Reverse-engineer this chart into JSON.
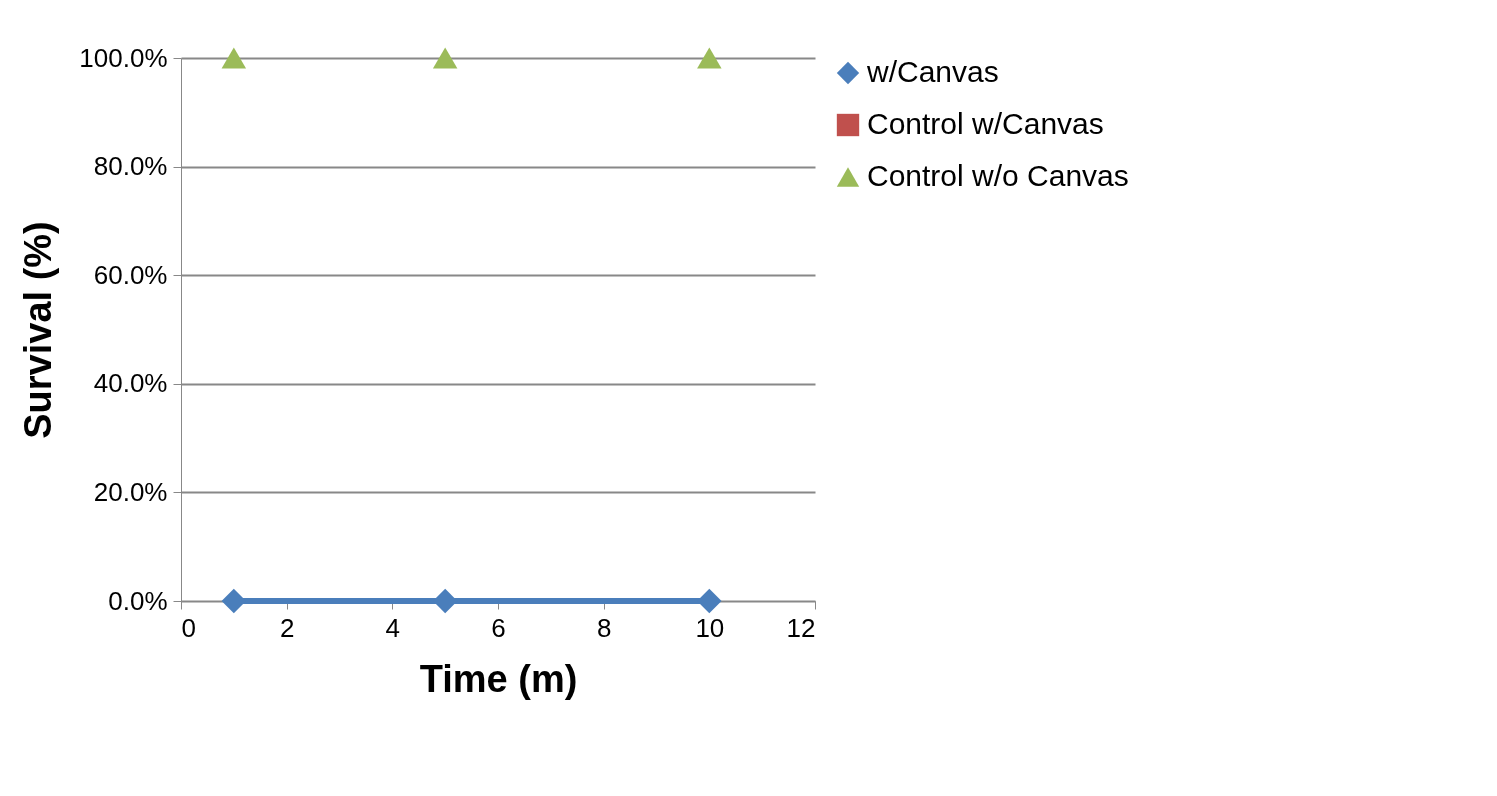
{
  "chart_data": {
    "type": "scatter",
    "xlabel": "Time (m)",
    "ylabel": "Survival (%)",
    "x": [
      1,
      5,
      10
    ],
    "series": [
      {
        "name": "w/Canvas",
        "type": "line",
        "marker": "diamond",
        "color": "#4a7ebb",
        "values": [
          0,
          0,
          0
        ]
      },
      {
        "name": "Control w/Canvas",
        "marker": "square",
        "color": "#c0504d",
        "values": [
          null,
          null,
          null
        ]
      },
      {
        "name": "Control w/o Canvas",
        "marker": "triangle",
        "color": "#9bbb59",
        "values": [
          100,
          100,
          100
        ]
      }
    ],
    "xlim": [
      0,
      12
    ],
    "xticks": [
      0,
      2,
      4,
      6,
      8,
      10,
      12
    ],
    "ylim": [
      0,
      100
    ],
    "yticks": [
      {
        "value": 0,
        "label": "0.0%"
      },
      {
        "value": 20,
        "label": "20.0%"
      },
      {
        "value": 40,
        "label": "40.0%"
      },
      {
        "value": 60,
        "label": "60.0%"
      },
      {
        "value": 80,
        "label": "80.0%"
      },
      {
        "value": 100,
        "label": "100.0%"
      }
    ],
    "grid": "y",
    "legend": "right"
  }
}
